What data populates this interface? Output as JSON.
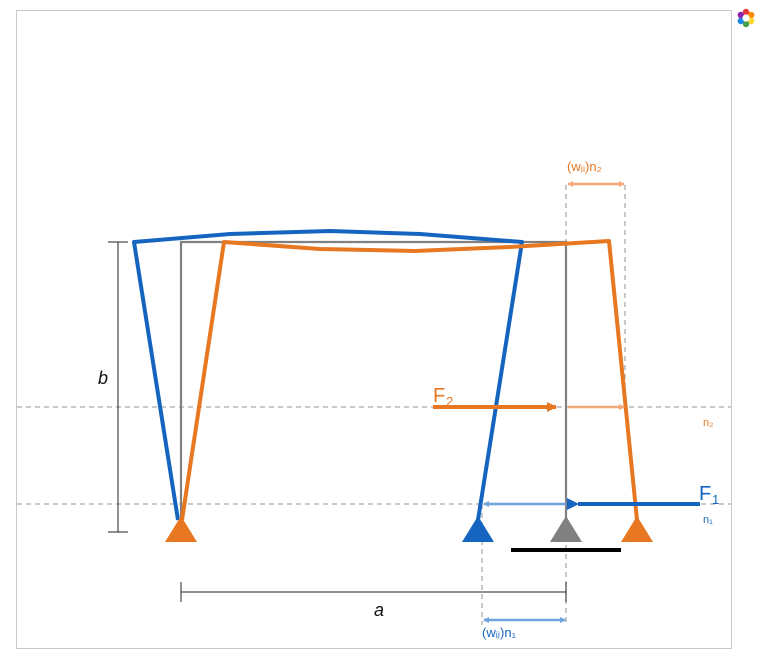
{
  "diagram": {
    "labels": {
      "dimension_width": "a",
      "dimension_height": "b",
      "force_2": "F",
      "force_2_sub": "2",
      "force_1": "F",
      "force_1_sub": "1",
      "level_n2": "n₂",
      "level_n1": "n₁",
      "disp_n2": "(wⱼᵢ)n₂",
      "disp_n1": "(wᵢⱼ)n₁"
    },
    "colors": {
      "original_frame": "#808080",
      "deformed_frame_orange": "#e87722",
      "deformed_frame_blue": "#1565c0",
      "light_orange": "#f0a878",
      "light_blue": "#6fa3dc",
      "guide_lines": "#aaaaaa",
      "ground": "#000000"
    },
    "icons": {
      "logo": "mathematica-logo-icon",
      "support": "triangle-support-icon"
    }
  }
}
